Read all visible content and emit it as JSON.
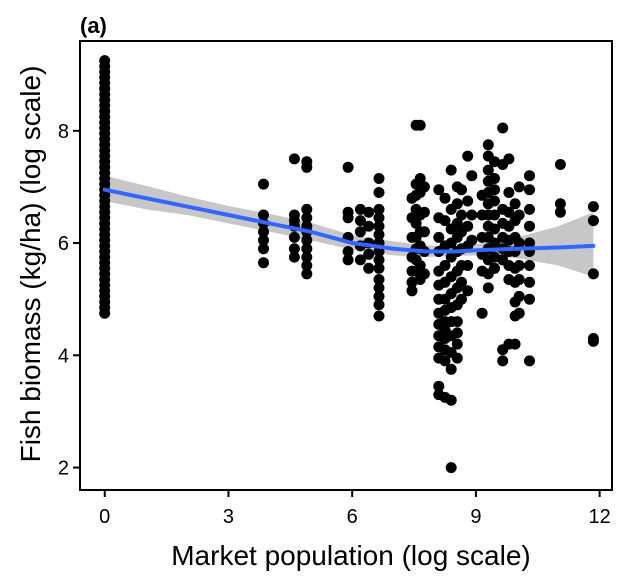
{
  "chart_data": {
    "type": "scatter",
    "panel_label": "(a)",
    "title": "",
    "xlabel": "Market population (log scale)",
    "ylabel": "Fish biomass (kg/ha) (log scale)",
    "xlim": [
      -0.6,
      12.3
    ],
    "ylim": [
      1.6,
      9.6
    ],
    "x_ticks": [
      0,
      3,
      6,
      9,
      12
    ],
    "y_ticks": [
      2,
      4,
      6,
      8
    ],
    "grid": false,
    "legend": "none",
    "point_color": "#000000",
    "smooth_color": "#3366ff",
    "band_color": "#bdbdbd",
    "smooth_x": [
      0,
      1,
      2,
      3,
      4,
      5,
      6,
      7,
      7.8,
      8.5,
      9,
      10,
      11,
      11.85
    ],
    "smooth_y": [
      6.95,
      6.8,
      6.65,
      6.5,
      6.35,
      6.2,
      6.0,
      5.9,
      5.85,
      5.85,
      5.87,
      5.9,
      5.92,
      5.95
    ],
    "smooth_lower": [
      6.75,
      6.6,
      6.5,
      6.35,
      6.2,
      6.05,
      5.88,
      5.78,
      5.75,
      5.77,
      5.78,
      5.73,
      5.6,
      5.4
    ],
    "smooth_upper": [
      7.2,
      7.02,
      6.83,
      6.66,
      6.52,
      6.36,
      6.14,
      6.03,
      5.96,
      5.94,
      5.98,
      6.1,
      6.3,
      6.55
    ],
    "points": [
      [
        0,
        9.25
      ],
      [
        0,
        9.15
      ],
      [
        0,
        9.05
      ],
      [
        0,
        8.95
      ],
      [
        0,
        8.85
      ],
      [
        0,
        8.75
      ],
      [
        0,
        8.65
      ],
      [
        0,
        8.55
      ],
      [
        0,
        8.45
      ],
      [
        0,
        8.35
      ],
      [
        0,
        8.25
      ],
      [
        0,
        8.15
      ],
      [
        0,
        8.05
      ],
      [
        0,
        7.95
      ],
      [
        0,
        7.85
      ],
      [
        0,
        7.75
      ],
      [
        0,
        7.65
      ],
      [
        0,
        7.55
      ],
      [
        0,
        7.45
      ],
      [
        0,
        7.35
      ],
      [
        0,
        7.25
      ],
      [
        0,
        7.15
      ],
      [
        0,
        7.05
      ],
      [
        0,
        6.95
      ],
      [
        0,
        6.85
      ],
      [
        0,
        6.75
      ],
      [
        0,
        6.65
      ],
      [
        0,
        6.55
      ],
      [
        0,
        6.45
      ],
      [
        0,
        6.35
      ],
      [
        0,
        6.25
      ],
      [
        0,
        6.15
      ],
      [
        0,
        6.05
      ],
      [
        0,
        5.95
      ],
      [
        0,
        5.85
      ],
      [
        0,
        5.75
      ],
      [
        0,
        5.65
      ],
      [
        0,
        5.55
      ],
      [
        0,
        5.45
      ],
      [
        0,
        5.35
      ],
      [
        0,
        5.25
      ],
      [
        0,
        5.15
      ],
      [
        0,
        5.05
      ],
      [
        0,
        4.95
      ],
      [
        0,
        4.85
      ],
      [
        0,
        4.75
      ],
      [
        3.85,
        7.05
      ],
      [
        3.85,
        6.5
      ],
      [
        3.85,
        6.35
      ],
      [
        3.85,
        6.2
      ],
      [
        3.85,
        6.05
      ],
      [
        3.85,
        5.9
      ],
      [
        3.85,
        5.65
      ],
      [
        4.6,
        7.5
      ],
      [
        4.6,
        6.5
      ],
      [
        4.6,
        6.4
      ],
      [
        4.6,
        6.3
      ],
      [
        4.6,
        6.1
      ],
      [
        4.6,
        5.9
      ],
      [
        4.6,
        5.75
      ],
      [
        4.9,
        7.45
      ],
      [
        4.9,
        7.35
      ],
      [
        4.9,
        6.6
      ],
      [
        4.9,
        6.45
      ],
      [
        4.9,
        6.3
      ],
      [
        4.9,
        6.2
      ],
      [
        4.9,
        6.05
      ],
      [
        4.9,
        5.9
      ],
      [
        4.9,
        5.75
      ],
      [
        4.9,
        5.6
      ],
      [
        4.9,
        5.45
      ],
      [
        5.9,
        7.35
      ],
      [
        5.9,
        6.55
      ],
      [
        5.9,
        6.45
      ],
      [
        5.9,
        6.1
      ],
      [
        5.9,
        5.85
      ],
      [
        5.9,
        5.7
      ],
      [
        6.2,
        6.6
      ],
      [
        6.2,
        6.4
      ],
      [
        6.2,
        6.2
      ],
      [
        6.2,
        5.95
      ],
      [
        6.2,
        5.7
      ],
      [
        6.4,
        6.55
      ],
      [
        6.4,
        6.3
      ],
      [
        6.4,
        6.0
      ],
      [
        6.4,
        5.8
      ],
      [
        6.4,
        5.55
      ],
      [
        6.65,
        7.15
      ],
      [
        6.65,
        6.9
      ],
      [
        6.65,
        6.6
      ],
      [
        6.65,
        6.45
      ],
      [
        6.65,
        6.3
      ],
      [
        6.65,
        6.15
      ],
      [
        6.65,
        6.0
      ],
      [
        6.65,
        5.85
      ],
      [
        6.65,
        5.7
      ],
      [
        6.65,
        5.55
      ],
      [
        6.65,
        5.35
      ],
      [
        6.65,
        5.2
      ],
      [
        6.65,
        5.05
      ],
      [
        6.65,
        4.9
      ],
      [
        6.65,
        4.7
      ],
      [
        7.45,
        6.8
      ],
      [
        7.45,
        6.45
      ],
      [
        7.45,
        6.1
      ],
      [
        7.45,
        5.75
      ],
      [
        7.45,
        5.5
      ],
      [
        7.45,
        5.3
      ],
      [
        7.45,
        5.15
      ],
      [
        7.55,
        8.1
      ],
      [
        7.55,
        7.05
      ],
      [
        7.55,
        6.85
      ],
      [
        7.55,
        6.6
      ],
      [
        7.55,
        6.35
      ],
      [
        7.55,
        6.1
      ],
      [
        7.55,
        5.9
      ],
      [
        7.55,
        5.7
      ],
      [
        7.55,
        5.5
      ],
      [
        7.65,
        8.1
      ],
      [
        7.65,
        7.15
      ],
      [
        7.65,
        6.9
      ],
      [
        7.65,
        6.5
      ],
      [
        7.65,
        6.2
      ],
      [
        7.65,
        5.95
      ],
      [
        7.65,
        5.6
      ],
      [
        7.65,
        5.35
      ],
      [
        7.75,
        7.0
      ],
      [
        7.75,
        6.55
      ],
      [
        7.75,
        6.2
      ],
      [
        7.75,
        5.85
      ],
      [
        7.75,
        5.45
      ],
      [
        8.1,
        6.95
      ],
      [
        8.1,
        6.45
      ],
      [
        8.1,
        6.1
      ],
      [
        8.1,
        5.85
      ],
      [
        8.1,
        5.5
      ],
      [
        8.1,
        5.25
      ],
      [
        8.1,
        5.0
      ],
      [
        8.1,
        4.75
      ],
      [
        8.1,
        4.55
      ],
      [
        8.1,
        4.35
      ],
      [
        8.1,
        4.15
      ],
      [
        8.1,
        3.95
      ],
      [
        8.1,
        3.45
      ],
      [
        8.1,
        3.3
      ],
      [
        8.25,
        6.8
      ],
      [
        8.25,
        6.4
      ],
      [
        8.25,
        5.95
      ],
      [
        8.25,
        5.6
      ],
      [
        8.25,
        5.3
      ],
      [
        8.25,
        5.0
      ],
      [
        8.25,
        4.8
      ],
      [
        8.25,
        4.6
      ],
      [
        8.25,
        4.45
      ],
      [
        8.25,
        4.3
      ],
      [
        8.25,
        4.1
      ],
      [
        8.25,
        3.9
      ],
      [
        8.25,
        3.25
      ],
      [
        8.4,
        7.3
      ],
      [
        8.4,
        6.6
      ],
      [
        8.4,
        6.25
      ],
      [
        8.4,
        6.0
      ],
      [
        8.4,
        5.75
      ],
      [
        8.4,
        5.4
      ],
      [
        8.4,
        5.1
      ],
      [
        8.4,
        4.85
      ],
      [
        8.4,
        4.6
      ],
      [
        8.4,
        4.35
      ],
      [
        8.4,
        4.05
      ],
      [
        8.4,
        3.75
      ],
      [
        8.4,
        3.2
      ],
      [
        8.4,
        2.0
      ],
      [
        8.55,
        7.0
      ],
      [
        8.55,
        6.7
      ],
      [
        8.55,
        6.35
      ],
      [
        8.55,
        6.1
      ],
      [
        8.55,
        5.85
      ],
      [
        8.55,
        5.5
      ],
      [
        8.55,
        5.2
      ],
      [
        8.55,
        4.9
      ],
      [
        8.55,
        4.6
      ],
      [
        8.55,
        4.4
      ],
      [
        8.55,
        4.2
      ],
      [
        8.55,
        3.95
      ],
      [
        8.65,
        6.95
      ],
      [
        8.65,
        6.5
      ],
      [
        8.65,
        6.2
      ],
      [
        8.65,
        5.9
      ],
      [
        8.65,
        5.6
      ],
      [
        8.65,
        5.3
      ],
      [
        8.65,
        5.0
      ],
      [
        8.8,
        7.55
      ],
      [
        8.8,
        6.75
      ],
      [
        8.8,
        6.3
      ],
      [
        8.8,
        5.95
      ],
      [
        8.8,
        5.6
      ],
      [
        8.8,
        5.15
      ],
      [
        8.9,
        7.2
      ],
      [
        8.9,
        6.5
      ],
      [
        8.9,
        6.05
      ],
      [
        9.15,
        6.85
      ],
      [
        9.15,
        6.5
      ],
      [
        9.15,
        6.1
      ],
      [
        9.15,
        5.8
      ],
      [
        9.15,
        5.5
      ],
      [
        9.15,
        4.75
      ],
      [
        9.3,
        7.75
      ],
      [
        9.3,
        7.55
      ],
      [
        9.3,
        7.3
      ],
      [
        9.3,
        7.1
      ],
      [
        9.3,
        6.9
      ],
      [
        9.3,
        6.7
      ],
      [
        9.3,
        6.5
      ],
      [
        9.3,
        6.3
      ],
      [
        9.3,
        6.1
      ],
      [
        9.3,
        5.9
      ],
      [
        9.3,
        5.7
      ],
      [
        9.3,
        5.45
      ],
      [
        9.3,
        5.2
      ],
      [
        9.45,
        7.45
      ],
      [
        9.45,
        7.15
      ],
      [
        9.45,
        6.95
      ],
      [
        9.45,
        6.75
      ],
      [
        9.45,
        6.5
      ],
      [
        9.45,
        6.25
      ],
      [
        9.45,
        6.0
      ],
      [
        9.45,
        5.75
      ],
      [
        9.45,
        5.55
      ],
      [
        9.65,
        8.05
      ],
      [
        9.65,
        7.4
      ],
      [
        9.65,
        6.6
      ],
      [
        9.65,
        6.35
      ],
      [
        9.65,
        6.1
      ],
      [
        9.65,
        5.9
      ],
      [
        9.65,
        5.7
      ],
      [
        9.65,
        4.1
      ],
      [
        9.65,
        3.9
      ],
      [
        9.8,
        7.5
      ],
      [
        9.8,
        6.9
      ],
      [
        9.8,
        6.55
      ],
      [
        9.8,
        6.3
      ],
      [
        9.8,
        6.05
      ],
      [
        9.8,
        5.85
      ],
      [
        9.8,
        5.6
      ],
      [
        9.8,
        5.35
      ],
      [
        9.8,
        4.2
      ],
      [
        9.95,
        6.7
      ],
      [
        9.95,
        6.4
      ],
      [
        9.95,
        6.1
      ],
      [
        9.95,
        5.85
      ],
      [
        9.95,
        5.55
      ],
      [
        9.95,
        5.3
      ],
      [
        9.95,
        4.95
      ],
      [
        9.95,
        4.7
      ],
      [
        9.95,
        4.2
      ],
      [
        10.05,
        7.0
      ],
      [
        10.05,
        6.5
      ],
      [
        10.05,
        6.0
      ],
      [
        10.05,
        5.6
      ],
      [
        10.05,
        5.35
      ],
      [
        10.05,
        5.05
      ],
      [
        10.05,
        4.75
      ],
      [
        10.3,
        7.2
      ],
      [
        10.3,
        6.95
      ],
      [
        10.3,
        6.6
      ],
      [
        10.3,
        6.3
      ],
      [
        10.3,
        6.0
      ],
      [
        10.3,
        5.85
      ],
      [
        10.3,
        5.6
      ],
      [
        10.3,
        5.3
      ],
      [
        10.3,
        5.0
      ],
      [
        10.3,
        3.9
      ],
      [
        11.05,
        7.4
      ],
      [
        11.05,
        6.7
      ],
      [
        11.05,
        6.55
      ],
      [
        11.85,
        6.65
      ],
      [
        11.85,
        6.4
      ],
      [
        11.85,
        5.45
      ],
      [
        11.85,
        4.3
      ],
      [
        11.85,
        4.25
      ]
    ]
  }
}
